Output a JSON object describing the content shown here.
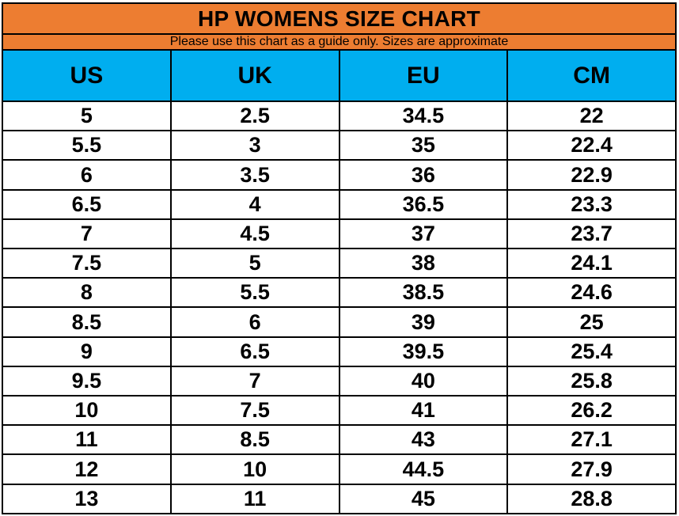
{
  "title": "HP WOMENS SIZE CHART",
  "subtitle": "Please use this chart as a guide only. Sizes are approximate",
  "colors": {
    "title_bg": "#ED7D31",
    "header_bg": "#00AEEF",
    "border": "#000000",
    "row_bg": "#FFFFFF",
    "text": "#000000"
  },
  "chart_data": {
    "type": "table",
    "title": "HP WOMENS SIZE CHART",
    "subtitle": "Please use this chart as a guide only. Sizes are approximate",
    "columns": [
      "US",
      "UK",
      "EU",
      "CM"
    ],
    "rows": [
      [
        "5",
        "2.5",
        "34.5",
        "22"
      ],
      [
        "5.5",
        "3",
        "35",
        "22.4"
      ],
      [
        "6",
        "3.5",
        "36",
        "22.9"
      ],
      [
        "6.5",
        "4",
        "36.5",
        "23.3"
      ],
      [
        "7",
        "4.5",
        "37",
        "23.7"
      ],
      [
        "7.5",
        "5",
        "38",
        "24.1"
      ],
      [
        "8",
        "5.5",
        "38.5",
        "24.6"
      ],
      [
        "8.5",
        "6",
        "39",
        "25"
      ],
      [
        "9",
        "6.5",
        "39.5",
        "25.4"
      ],
      [
        "9.5",
        "7",
        "40",
        "25.8"
      ],
      [
        "10",
        "7.5",
        "41",
        "26.2"
      ],
      [
        "11",
        "8.5",
        "43",
        "27.1"
      ],
      [
        "12",
        "10",
        "44.5",
        "27.9"
      ],
      [
        "13",
        "11",
        "45",
        "28.8"
      ]
    ]
  }
}
